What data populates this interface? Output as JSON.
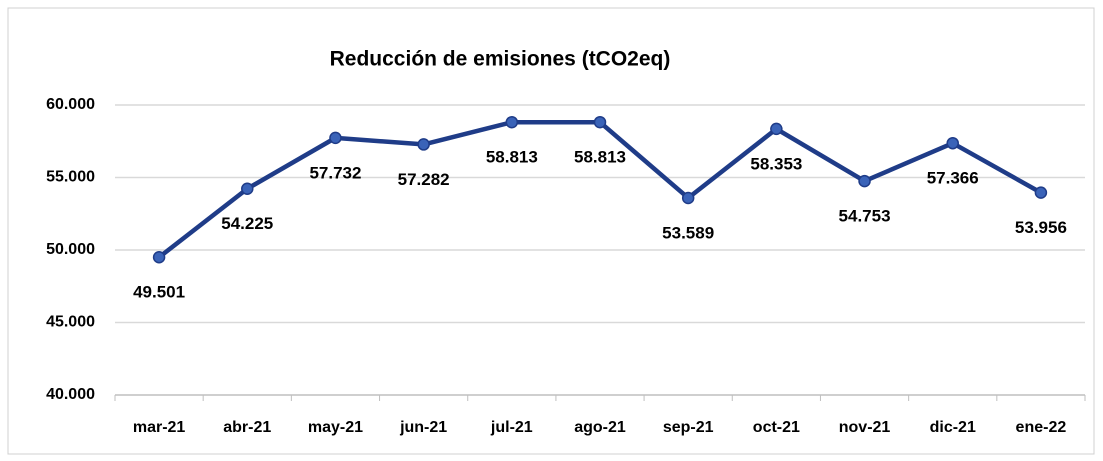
{
  "chart_data": {
    "type": "line",
    "title": "Reducción de emisiones (tCO2eq)",
    "categories": [
      "mar-21",
      "abr-21",
      "may-21",
      "jun-21",
      "jul-21",
      "ago-21",
      "sep-21",
      "oct-21",
      "nov-21",
      "dic-21",
      "ene-22"
    ],
    "values": [
      49501,
      54225,
      57732,
      57282,
      58813,
      58813,
      53589,
      58353,
      54753,
      57366,
      53956
    ],
    "value_labels": [
      "49.501",
      "54.225",
      "57.732",
      "57.282",
      "58.813",
      "58.813",
      "53.589",
      "58.353",
      "54.753",
      "57.366",
      "53.956"
    ],
    "color": "#1f3c88",
    "ylim": [
      40000,
      60000
    ],
    "yticks": [
      {
        "value": 40000,
        "label": "40.000"
      },
      {
        "value": 45000,
        "label": "45.000"
      },
      {
        "value": 50000,
        "label": "50.000"
      },
      {
        "value": 55000,
        "label": "55.000"
      },
      {
        "value": 60000,
        "label": "60.000"
      }
    ],
    "grid": true
  }
}
